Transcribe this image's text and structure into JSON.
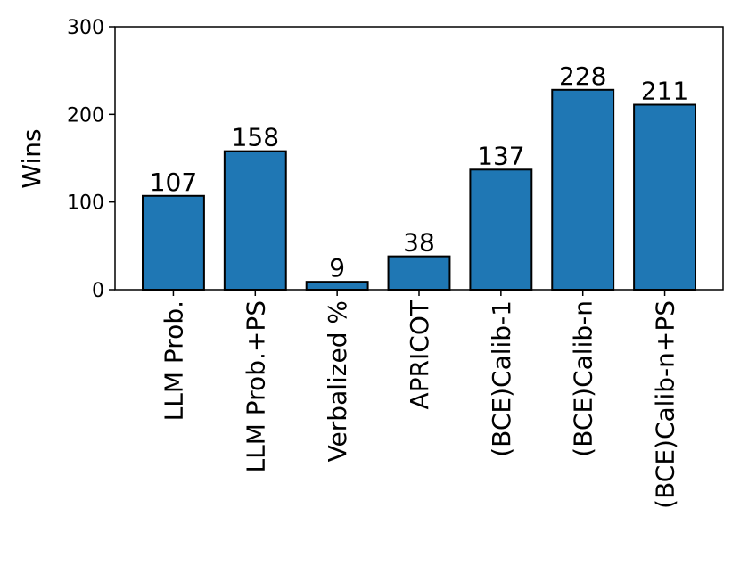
{
  "chart_data": {
    "type": "bar",
    "y_label": "Wins",
    "categories": [
      "LLM Prob.",
      "LLM Prob.+PS",
      "Verbalized %",
      "APRICOT",
      "(BCE)Calib-1",
      "(BCE)Calib-n",
      "(BCE)Calib-n+PS"
    ],
    "values": [
      107,
      158,
      9,
      38,
      137,
      228,
      211
    ],
    "color": "#1f77b4",
    "ylim": [
      0,
      300
    ],
    "yticks": [
      0,
      100,
      200,
      300
    ]
  }
}
